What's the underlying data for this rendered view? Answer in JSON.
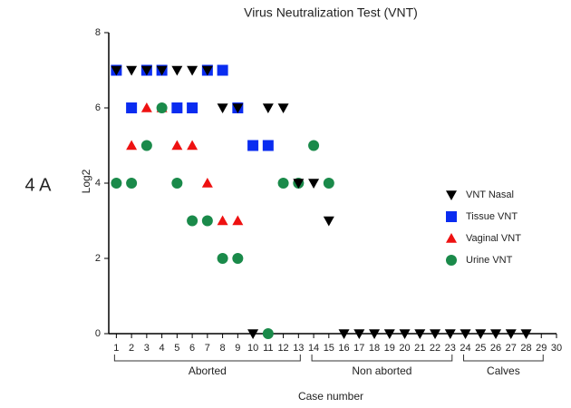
{
  "chart_data": {
    "type": "scatter",
    "title": "Virus Neutralization Test (VNT)",
    "panel_label": "4 A",
    "y_label": "Log2",
    "x_label": "Case number",
    "xlim": [
      0.5,
      30
    ],
    "ylim": [
      0,
      8
    ],
    "xticks": [
      1,
      2,
      3,
      4,
      5,
      6,
      7,
      8,
      9,
      10,
      11,
      12,
      13,
      14,
      15,
      16,
      17,
      18,
      19,
      20,
      21,
      22,
      23,
      24,
      25,
      26,
      27,
      28,
      29,
      30
    ],
    "yticks": [
      0,
      2,
      4,
      6,
      8
    ],
    "legend": "right",
    "groups": [
      {
        "label": "Aborted",
        "start": 1,
        "end": 13
      },
      {
        "label": "Non aborted",
        "start": 14,
        "end": 23
      },
      {
        "label": "Calves",
        "start": 24,
        "end": 29
      }
    ],
    "series": [
      {
        "name": "VNT Nasal",
        "color": "#000000",
        "marker": "triangle-down",
        "x": [
          1,
          2,
          3,
          4,
          5,
          6,
          7,
          8,
          9,
          11,
          12,
          13,
          14,
          15,
          10,
          16,
          17,
          18,
          19,
          20,
          21,
          22,
          23,
          24,
          25,
          26,
          27,
          28
        ],
        "values": [
          7,
          7,
          7,
          7,
          7,
          7,
          7,
          6,
          6,
          6,
          6,
          4,
          4,
          3,
          0,
          0,
          0,
          0,
          0,
          0,
          0,
          0,
          0,
          0,
          0,
          0,
          0,
          0
        ]
      },
      {
        "name": "Tissue VNT",
        "color": "#0a2cf0",
        "marker": "square",
        "x": [
          1,
          3,
          4,
          7,
          8,
          2,
          5,
          6,
          9,
          10,
          11
        ],
        "values": [
          7,
          7,
          7,
          7,
          7,
          6,
          6,
          6,
          6,
          5,
          5
        ]
      },
      {
        "name": "Vaginal VNT",
        "color": "#ee1111",
        "marker": "triangle-up",
        "x": [
          3,
          4,
          2,
          5,
          6,
          7,
          8,
          9
        ],
        "values": [
          6,
          6,
          5,
          5,
          5,
          4,
          3,
          3
        ]
      },
      {
        "name": "Urine VNT",
        "color": "#1a8a4a",
        "marker": "circle",
        "x": [
          1,
          2,
          5,
          12,
          13,
          15,
          3,
          14,
          4,
          6,
          7,
          8,
          9,
          11
        ],
        "values": [
          4,
          4,
          4,
          4,
          4,
          4,
          5,
          5,
          6,
          3,
          3,
          2,
          2,
          0
        ]
      }
    ]
  }
}
